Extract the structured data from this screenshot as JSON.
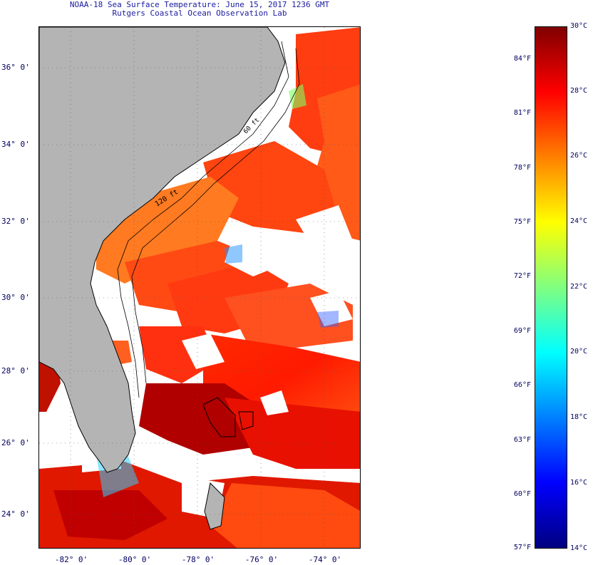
{
  "title": {
    "line1": "NOAA-18 Sea Surface Temperature:  June 15, 2017 1236 GMT",
    "line2": "Rutgers Coastal Ocean Observation Lab"
  },
  "map": {
    "lat_labels": [
      "36° 0'",
      "34° 0'",
      "32° 0'",
      "30° 0'",
      "28° 0'",
      "26° 0'",
      "24° 0'"
    ],
    "lon_labels": [
      "-82° 0'",
      "-80° 0'",
      "-78° 0'",
      "-76° 0'",
      "-74° 0'"
    ],
    "lat_range": [
      23.0,
      37.0
    ],
    "lon_range": [
      -83.0,
      -73.0
    ],
    "contour_labels": [
      "120 ft",
      "60 ft"
    ],
    "colors": {
      "land": "#b4b4b4",
      "cloud": "#ffffff",
      "coast": "#000000"
    }
  },
  "colorbar": {
    "range_c": [
      14,
      30
    ],
    "celsius_labels": [
      "30°C",
      "28°C",
      "26°C",
      "24°C",
      "22°C",
      "20°C",
      "18°C",
      "16°C",
      "14°C"
    ],
    "fahrenheit_labels": [
      "84°F",
      "81°F",
      "78°F",
      "75°F",
      "72°F",
      "69°F",
      "66°F",
      "63°F",
      "60°F",
      "57°F"
    ],
    "stops": [
      "#000080",
      "#0000ff",
      "#0080ff",
      "#00ffff",
      "#80ff80",
      "#ffff00",
      "#ff8000",
      "#ff0000",
      "#800000"
    ]
  }
}
